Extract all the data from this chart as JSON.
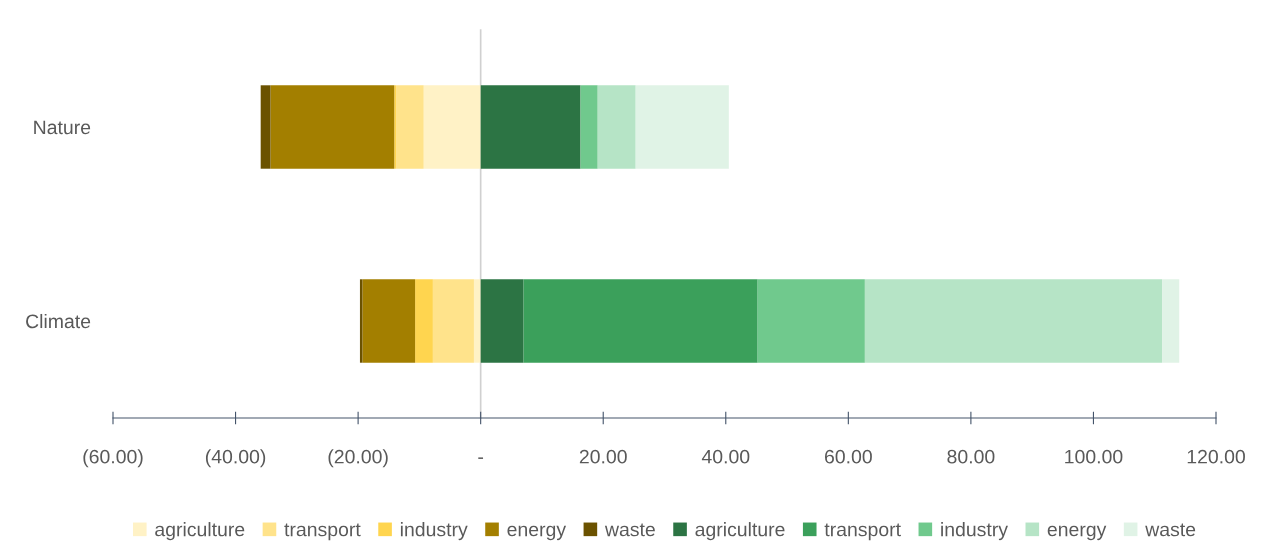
{
  "chart_data": {
    "type": "bar",
    "orientation": "horizontal",
    "stacked": true,
    "categories": [
      "Nature",
      "Climate"
    ],
    "series": [
      {
        "name": "agriculture",
        "color": "#fff2c6",
        "values": [
          -9.3,
          -1.1
        ]
      },
      {
        "name": "transport",
        "color": "#ffe38b",
        "values": [
          -4.5,
          -6.7
        ]
      },
      {
        "name": "industry",
        "color": "#ffd54f",
        "values": [
          -0.3,
          -2.9
        ]
      },
      {
        "name": "energy",
        "color": "#a37f00",
        "values": [
          -20.2,
          -8.6
        ]
      },
      {
        "name": "waste",
        "color": "#6b5200",
        "values": [
          -1.6,
          -0.4
        ]
      },
      {
        "name": "agriculture",
        "color": "#2c7444",
        "values": [
          16.3,
          7.0
        ]
      },
      {
        "name": "transport",
        "color": "#3ba05b",
        "values": [
          0,
          38.2
        ]
      },
      {
        "name": "industry",
        "color": "#70c98d",
        "values": [
          2.8,
          17.5
        ]
      },
      {
        "name": "energy",
        "color": "#b6e4c6",
        "values": [
          6.2,
          48.5
        ]
      },
      {
        "name": "waste",
        "color": "#e0f3e6",
        "values": [
          15.2,
          2.8
        ]
      }
    ],
    "xlim": [
      -60,
      120
    ],
    "xticks": [
      {
        "value": -60,
        "label": "(60.00)"
      },
      {
        "value": -40,
        "label": "(40.00)"
      },
      {
        "value": -20,
        "label": "(20.00)"
      },
      {
        "value": 0,
        "label": "-"
      },
      {
        "value": 20,
        "label": "20.00"
      },
      {
        "value": 40,
        "label": "40.00"
      },
      {
        "value": 60,
        "label": "60.00"
      },
      {
        "value": 80,
        "label": "80.00"
      },
      {
        "value": 100,
        "label": "100.00"
      },
      {
        "value": 120,
        "label": "120.00"
      }
    ],
    "legend": "bottom"
  }
}
